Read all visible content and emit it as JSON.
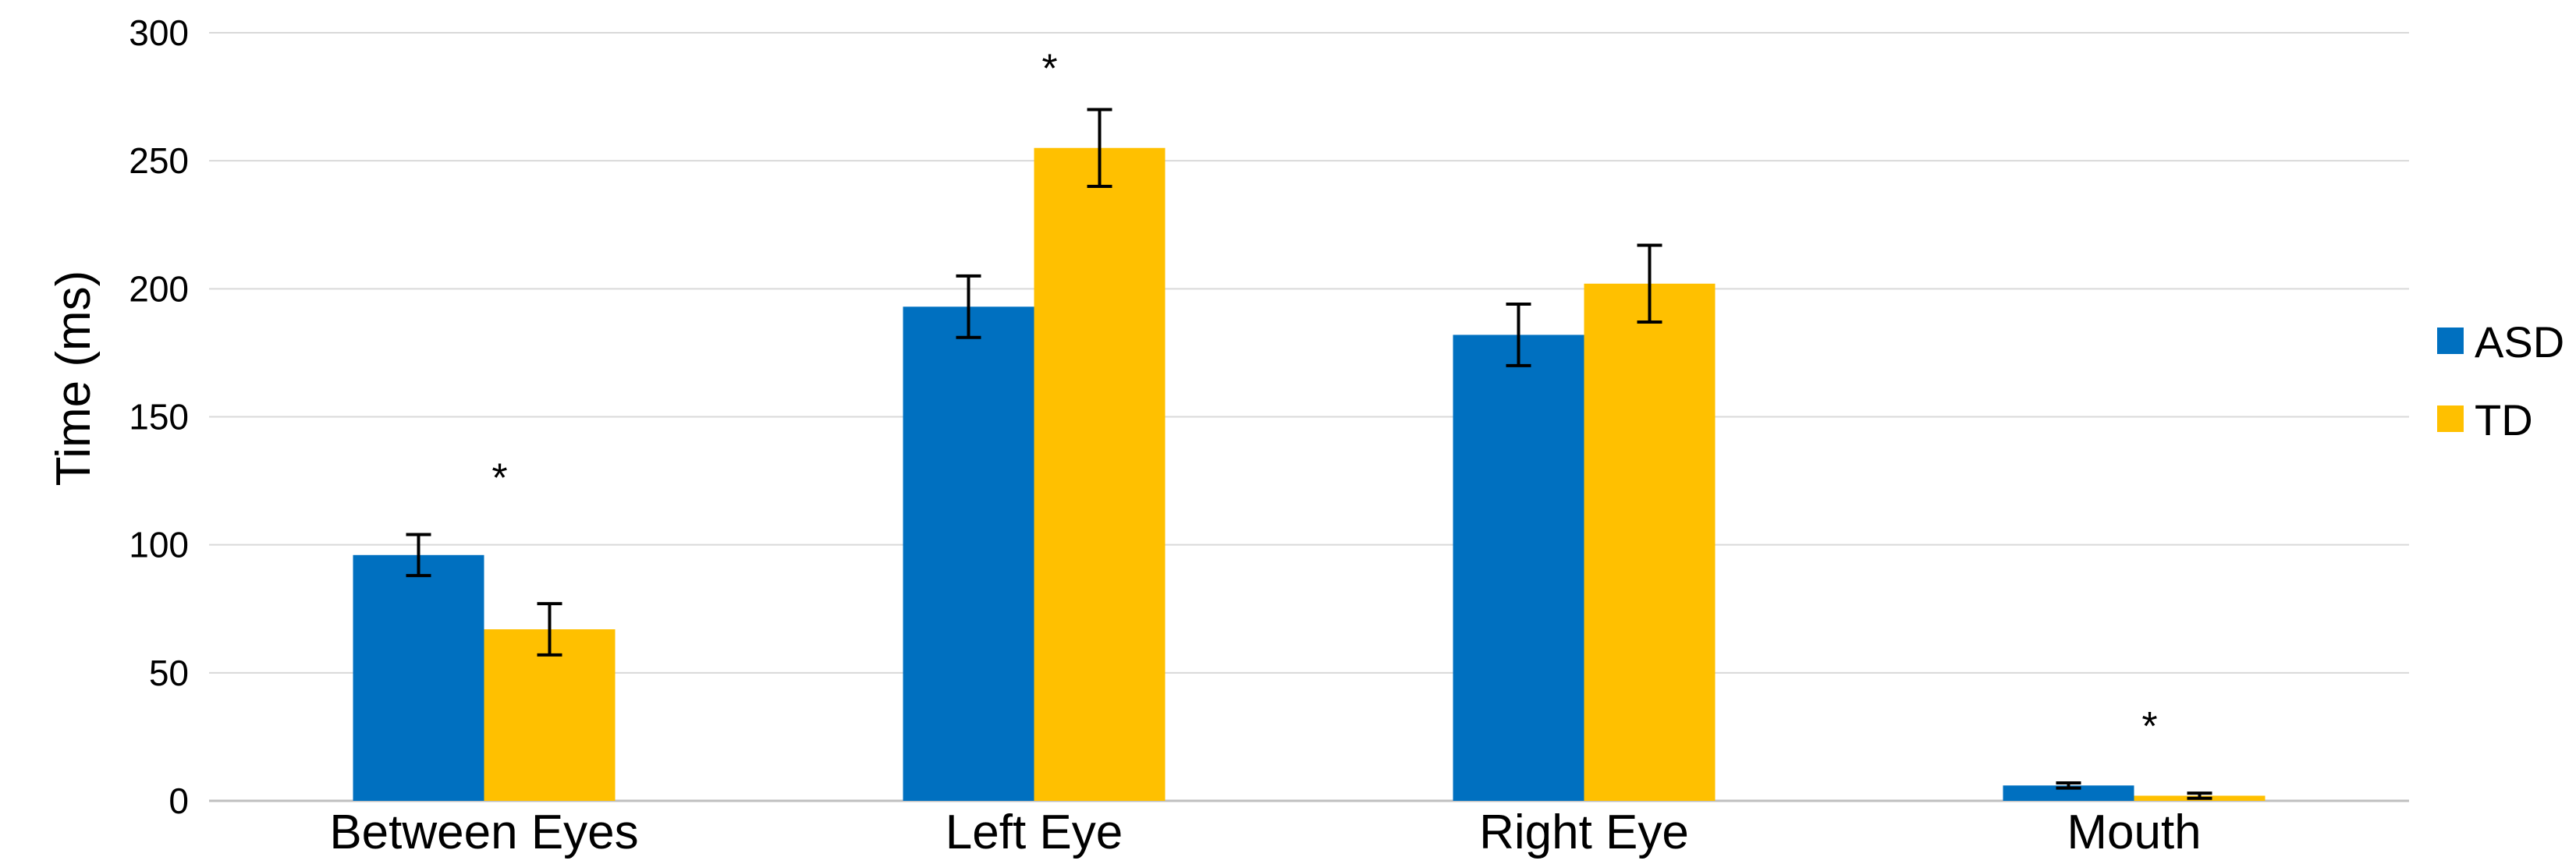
{
  "chart_data": {
    "type": "bar",
    "categories": [
      "Between Eyes",
      "Left Eye",
      "Right Eye",
      "Mouth"
    ],
    "series": [
      {
        "name": "ASD",
        "color": "#0070C0",
        "values": [
          96,
          193,
          182,
          6
        ],
        "error": [
          8,
          12,
          12,
          1
        ]
      },
      {
        "name": "TD",
        "color": "#FFC000",
        "values": [
          67,
          255,
          202,
          2
        ],
        "error": [
          10,
          15,
          15,
          1
        ]
      }
    ],
    "significance": [
      {
        "category": "Between Eyes",
        "label": "*",
        "y": 125
      },
      {
        "category": "Left Eye",
        "label": "*",
        "y": 285
      },
      {
        "category": "Mouth",
        "label": "*",
        "y": 28
      }
    ],
    "title": "",
    "xlabel": "",
    "ylabel": "Time (ms)",
    "ylim": [
      0,
      300
    ],
    "yticks": [
      0,
      50,
      100,
      150,
      200,
      250,
      300
    ],
    "grid": true,
    "legend": "right"
  }
}
